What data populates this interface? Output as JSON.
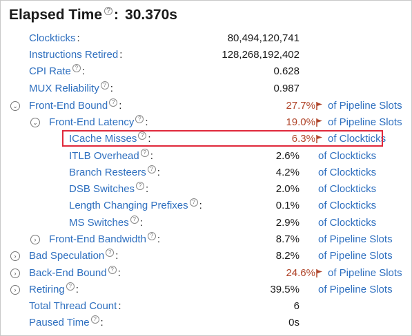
{
  "header": {
    "title": "Elapsed Time",
    "value": "30.370s"
  },
  "rows": [
    {
      "label": "Clockticks",
      "value": "80,494,120,741",
      "unit": ""
    },
    {
      "label": "Instructions Retired",
      "value": "128,268,192,402",
      "unit": ""
    },
    {
      "label": "CPI Rate",
      "value": "0.628",
      "unit": ""
    },
    {
      "label": "MUX Reliability",
      "value": "0.987",
      "unit": ""
    },
    {
      "label": "Front-End Bound",
      "value": "27.7%",
      "unit": "of Pipeline Slots"
    },
    {
      "label": "Front-End Latency",
      "value": "19.0%",
      "unit": "of Pipeline Slots"
    },
    {
      "label": "ICache Misses",
      "value": "6.3%",
      "unit": "of Clockticks"
    },
    {
      "label": "ITLB Overhead",
      "value": "2.6%",
      "unit": "of Clockticks"
    },
    {
      "label": "Branch Resteers",
      "value": "4.2%",
      "unit": "of Clockticks"
    },
    {
      "label": "DSB Switches",
      "value": "2.0%",
      "unit": "of Clockticks"
    },
    {
      "label": "Length Changing Prefixes",
      "value": "0.1%",
      "unit": "of Clockticks"
    },
    {
      "label": "MS Switches",
      "value": "2.9%",
      "unit": "of Clockticks"
    },
    {
      "label": "Front-End Bandwidth",
      "value": "8.7%",
      "unit": "of Pipeline Slots"
    },
    {
      "label": "Bad Speculation",
      "value": "8.2%",
      "unit": "of Pipeline Slots"
    },
    {
      "label": "Back-End Bound",
      "value": "24.6%",
      "unit": "of Pipeline Slots"
    },
    {
      "label": "Retiring",
      "value": "39.5%",
      "unit": "of Pipeline Slots"
    },
    {
      "label": "Total Thread Count",
      "value": "6",
      "unit": ""
    },
    {
      "label": "Paused Time",
      "value": "0s",
      "unit": ""
    }
  ],
  "icons": {
    "help": "question-circle-icon",
    "flag": "flag-icon",
    "expand": "chevron-right-circle-icon",
    "collapse": "chevron-down-circle-icon"
  },
  "colors": {
    "link": "#2e6fbf",
    "warning": "#b0452a",
    "highlight": "#e0283a"
  },
  "glyphs": {
    "help": "?",
    "colon": ":",
    "expanded": "⌄",
    "collapsed": "›"
  }
}
